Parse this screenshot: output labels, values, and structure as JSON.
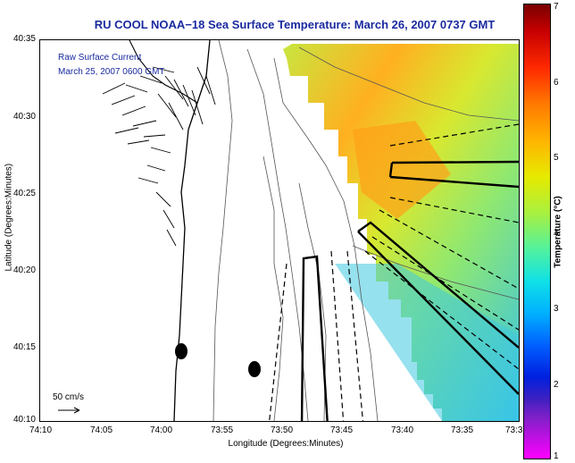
{
  "title": "RU COOL  NOAA−18  Sea Surface Temperature:  March 26, 2007 0737 GMT",
  "current_legend": {
    "line1": "Raw Surface Current",
    "line2": "March 25, 2007 0600 GMT",
    "scale_label": "50 cm/s"
  },
  "axes": {
    "xlabel": "Longitude (Degrees:Minutes)",
    "ylabel": "Latitude (Degrees:Minutes)",
    "y_ticks": [
      "40:35",
      "40:30",
      "40:25",
      "40:20",
      "40:15",
      "40:10"
    ],
    "x_ticks": [
      "74:10",
      "74:05",
      "74:00",
      "73:55",
      "73:50",
      "73:45",
      "73:40",
      "73:35",
      "73:3"
    ]
  },
  "colorbar": {
    "label": "Temperature (°C)",
    "ticks": [
      "7",
      "6",
      "5",
      "4",
      "3",
      "2",
      "1"
    ],
    "min": 1,
    "max": 7
  },
  "colors": {
    "title_text": "#1a2aa0",
    "land": "#ffffff",
    "sst_warm": "#ffa820",
    "sst_mid": "#c8e640",
    "sst_cool": "#30c8f0"
  }
}
